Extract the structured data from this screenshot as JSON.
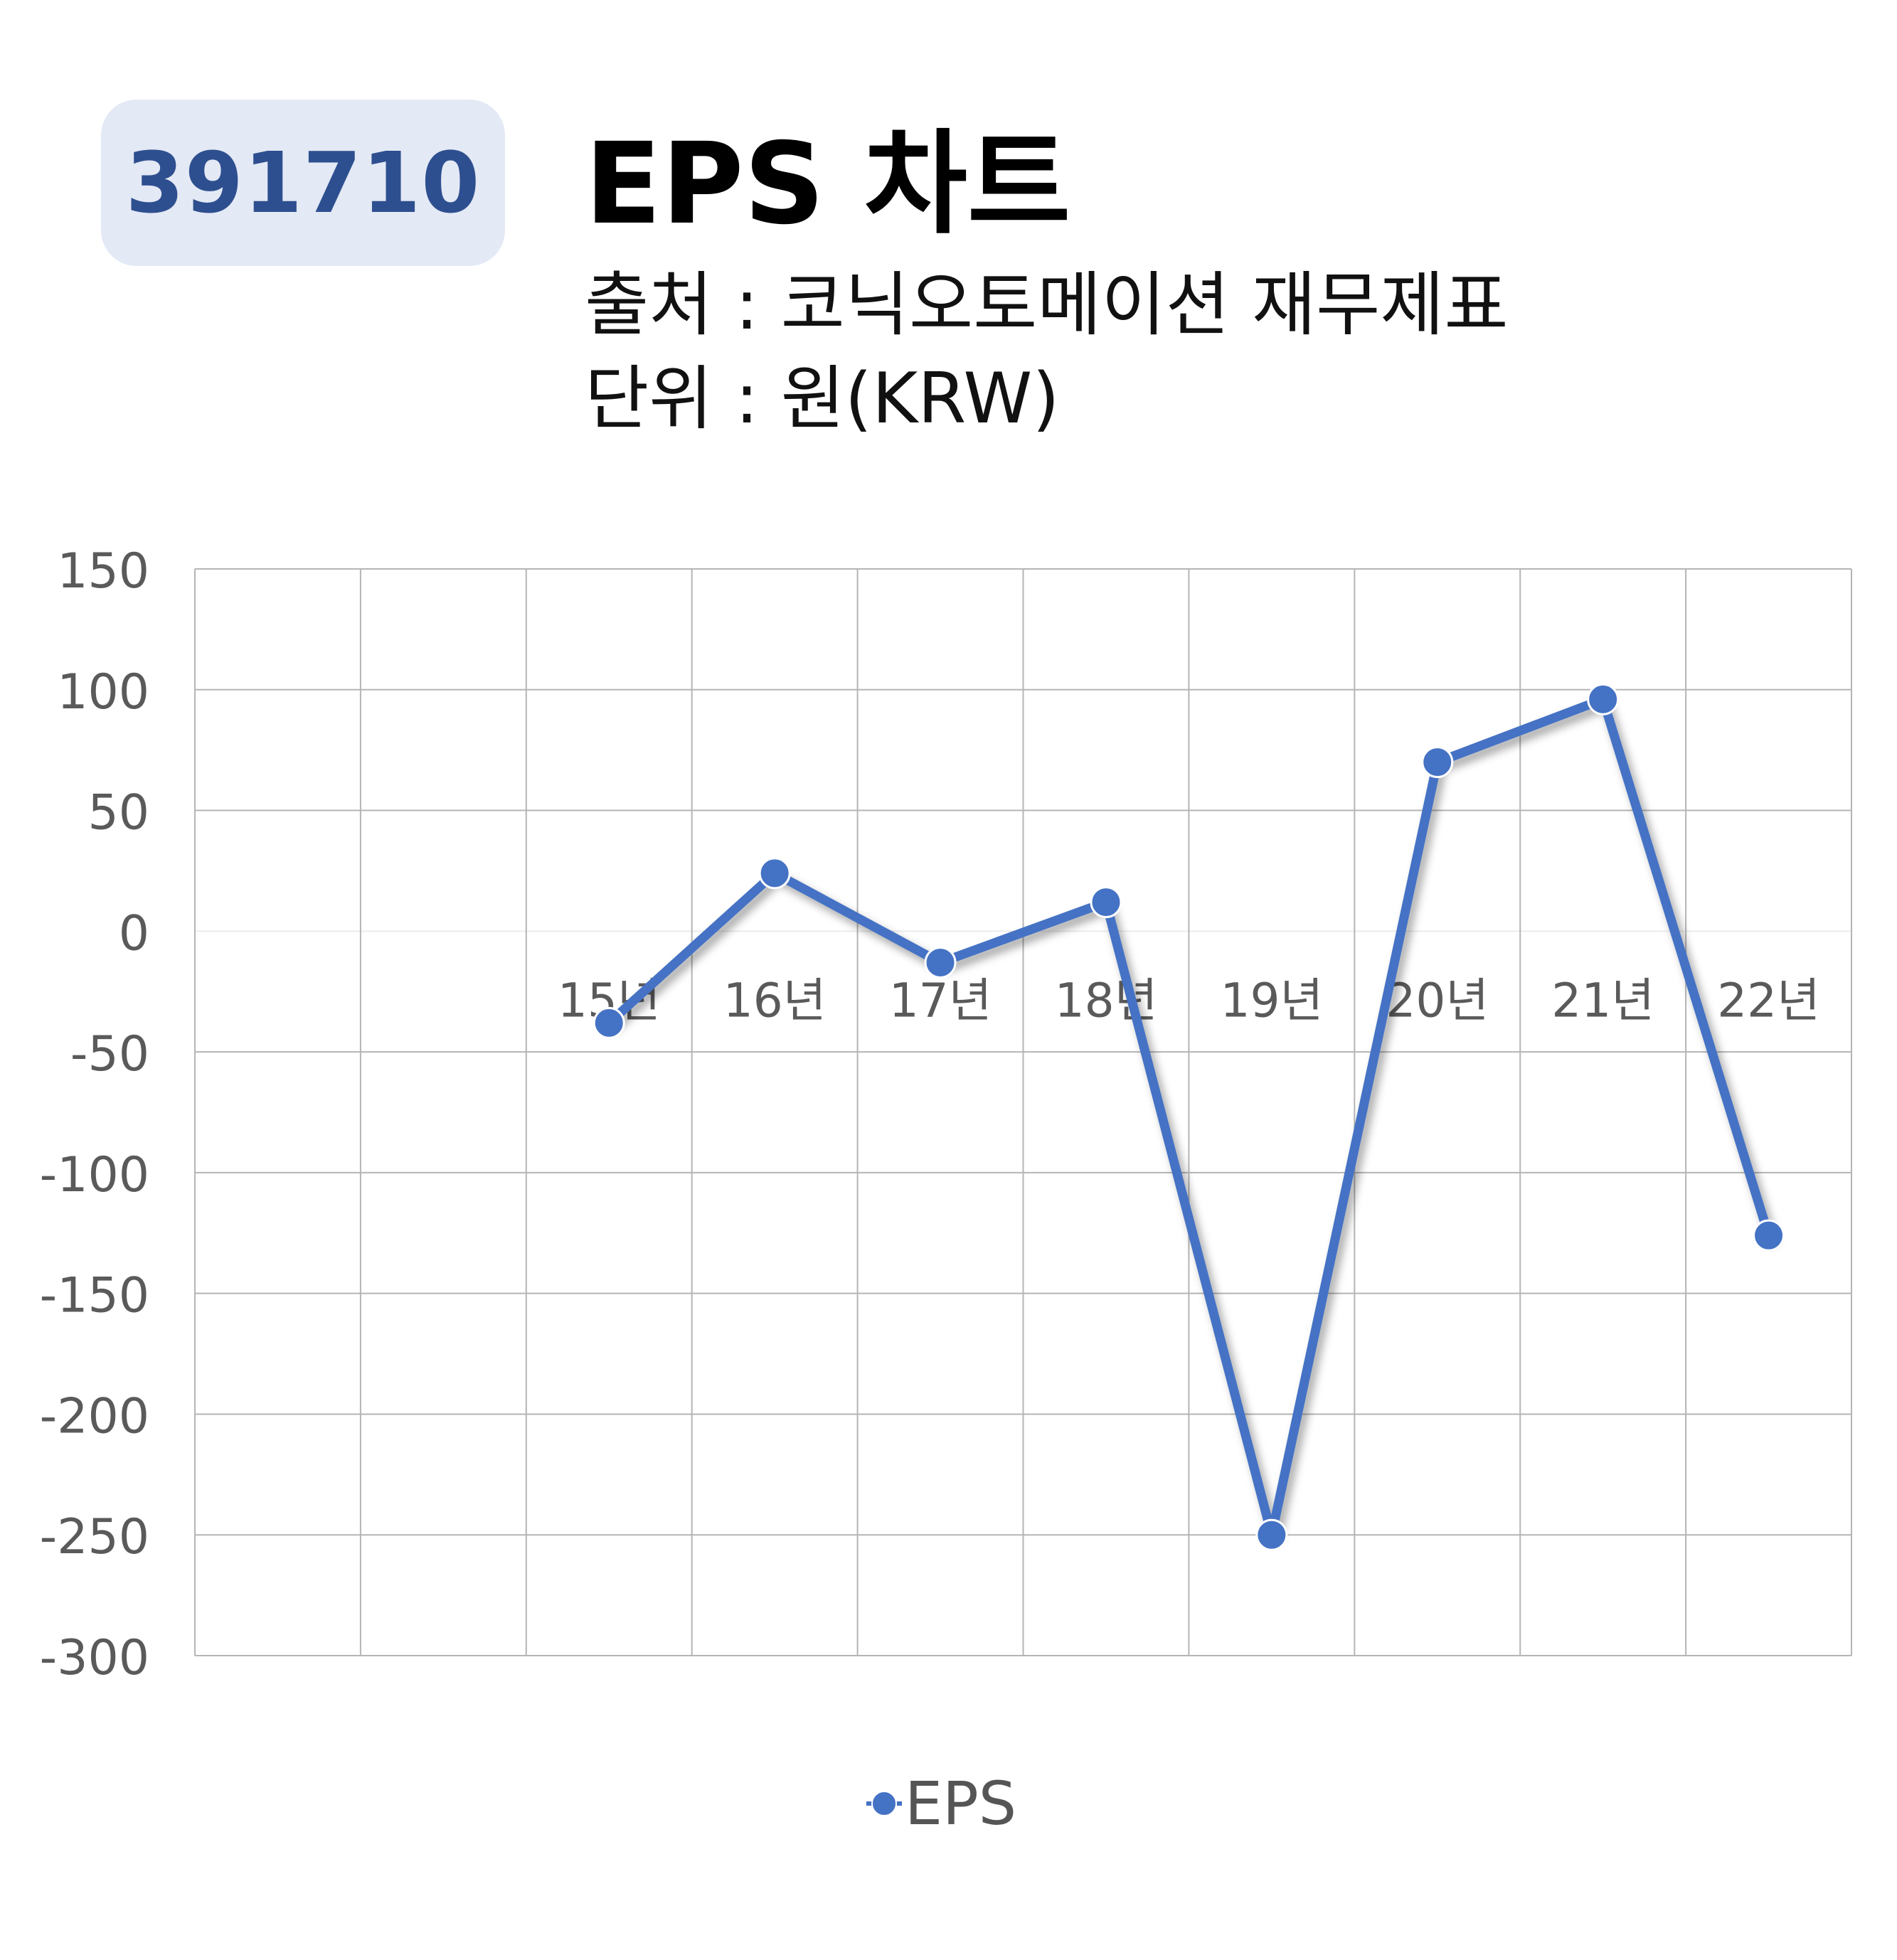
{
  "header": {
    "code": "391710",
    "title": "EPS 차트",
    "source": "출처 : 코닉오토메이션 재무제표",
    "unit": "단위 : 원(KRW)"
  },
  "colors": {
    "series": "#4472c4",
    "badge_bg": "#e3e9f5",
    "badge_text": "#2e4f8f",
    "grid": "#b5b5b5",
    "tick_text": "#5a5a5a"
  },
  "chart_data": {
    "type": "line",
    "title": "EPS 차트",
    "categories": [
      "15년",
      "16년",
      "17년",
      "18년",
      "19년",
      "20년",
      "21년",
      "22년"
    ],
    "series": [
      {
        "name": "EPS",
        "values": [
          -38,
          24,
          -13,
          12,
          -250,
          70,
          96,
          -126
        ]
      }
    ],
    "ylim": [
      -300,
      150
    ],
    "yticks": [
      150,
      100,
      50,
      0,
      -50,
      -100,
      -150,
      -200,
      -250,
      -300
    ],
    "grid": true,
    "legend": "bottom"
  }
}
